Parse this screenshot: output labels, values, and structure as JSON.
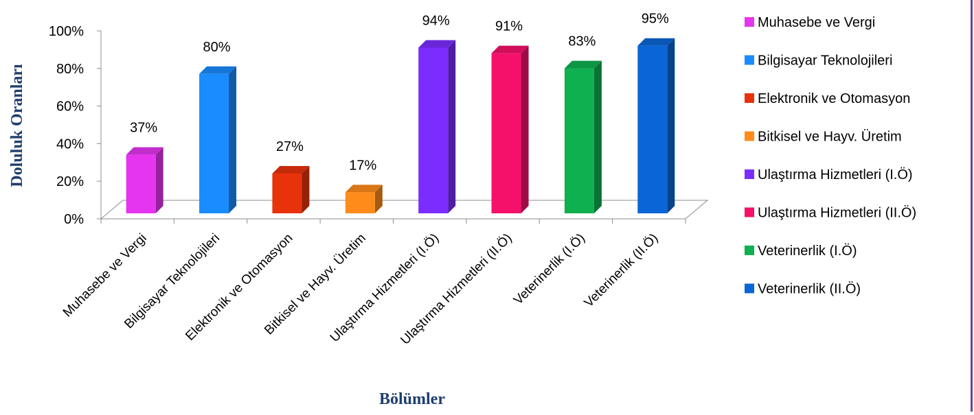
{
  "chart_data": {
    "type": "bar",
    "categories": [
      "Muhasebe ve Vergi",
      "Bilgisayar Teknolojileri",
      "Elektronik ve Otomasyon",
      "Bitkisel ve Hayv. Üretim",
      "Ulaştırma Hizmetleri (I.Ö)",
      "Ulaştırma Hizmetleri (II.Ö)",
      "Veterinerlik (I.Ö)",
      "Veterinerlik (II.Ö)"
    ],
    "values": [
      37,
      80,
      27,
      17,
      94,
      91,
      83,
      95
    ],
    "data_labels": [
      "37%",
      "80%",
      "27%",
      "17%",
      "94%",
      "91%",
      "83%",
      "95%"
    ],
    "colors": [
      "#e535f0",
      "#1a8cff",
      "#e8320b",
      "#ff8c1a",
      "#7b2dff",
      "#f5106a",
      "#0fb050",
      "#0a66d6"
    ],
    "legend": [
      "Muhasebe ve Vergi",
      "Bilgisayar Teknolojileri",
      "Elektronik ve Otomasyon",
      "Bitkisel ve Hayv. Üretim",
      "Ulaştırma Hizmetleri (I.Ö)",
      "Ulaştırma Hizmetleri (II.Ö)",
      "Veterinerlik (I.Ö)",
      "Veterinerlik (II.Ö)"
    ],
    "legend_position": "right",
    "xlabel": "Bölümler",
    "ylabel": "Doluluk Oranları",
    "ylim": [
      0,
      100
    ],
    "yticks": [
      "0%",
      "20%",
      "40%",
      "60%",
      "80%",
      "100%"
    ],
    "grid": false,
    "axis_title_color": "#1f3f6e"
  }
}
